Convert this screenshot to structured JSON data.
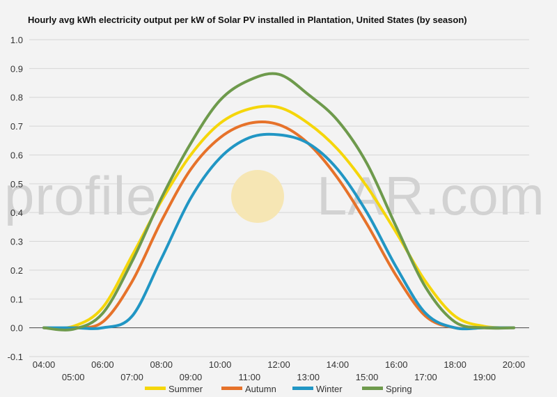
{
  "chart_data": {
    "type": "line",
    "title": "Hourly avg kWh electricity output per kW of Solar PV installed in Plantation, United States (by season)",
    "xlabel": "",
    "ylabel": "",
    "ylim": [
      -0.1,
      1.0
    ],
    "yticks": [
      "-0.1",
      "0.0",
      "0.1",
      "0.2",
      "0.3",
      "0.4",
      "0.5",
      "0.6",
      "0.7",
      "0.8",
      "0.9",
      "1.0"
    ],
    "xticks": [
      "04:00",
      "05:00",
      "06:00",
      "07:00",
      "08:00",
      "09:00",
      "10:00",
      "11:00",
      "12:00",
      "13:00",
      "14:00",
      "15:00",
      "16:00",
      "17:00",
      "18:00",
      "19:00",
      "20:00"
    ],
    "grid": true,
    "legend": "bottom",
    "x_hours": [
      4,
      5,
      6,
      7,
      8,
      9,
      10,
      11,
      12,
      13,
      14,
      15,
      16,
      17,
      18,
      19,
      20
    ],
    "series": [
      {
        "name": "Summer",
        "color": "#f5d60a",
        "values": [
          0.0,
          0.005,
          0.07,
          0.25,
          0.44,
          0.6,
          0.71,
          0.76,
          0.765,
          0.71,
          0.62,
          0.49,
          0.33,
          0.16,
          0.04,
          0.005,
          0.0
        ]
      },
      {
        "name": "Autumn",
        "color": "#e6722a",
        "values": [
          0.0,
          0.0,
          0.02,
          0.16,
          0.37,
          0.55,
          0.66,
          0.71,
          0.705,
          0.64,
          0.52,
          0.36,
          0.18,
          0.04,
          0.0,
          0.0,
          0.0
        ]
      },
      {
        "name": "Winter",
        "color": "#2196c4",
        "values": [
          0.0,
          0.0,
          0.0,
          0.04,
          0.24,
          0.45,
          0.59,
          0.66,
          0.67,
          0.64,
          0.55,
          0.4,
          0.21,
          0.05,
          0.0,
          0.0,
          0.0
        ]
      },
      {
        "name": "Spring",
        "color": "#6e9a4c",
        "values": [
          0.0,
          -0.005,
          0.05,
          0.23,
          0.45,
          0.64,
          0.79,
          0.86,
          0.88,
          0.81,
          0.72,
          0.57,
          0.35,
          0.14,
          0.02,
          0.0,
          0.0
        ]
      }
    ]
  },
  "watermark": {
    "before": "profile",
    "after": "LAR.com"
  }
}
